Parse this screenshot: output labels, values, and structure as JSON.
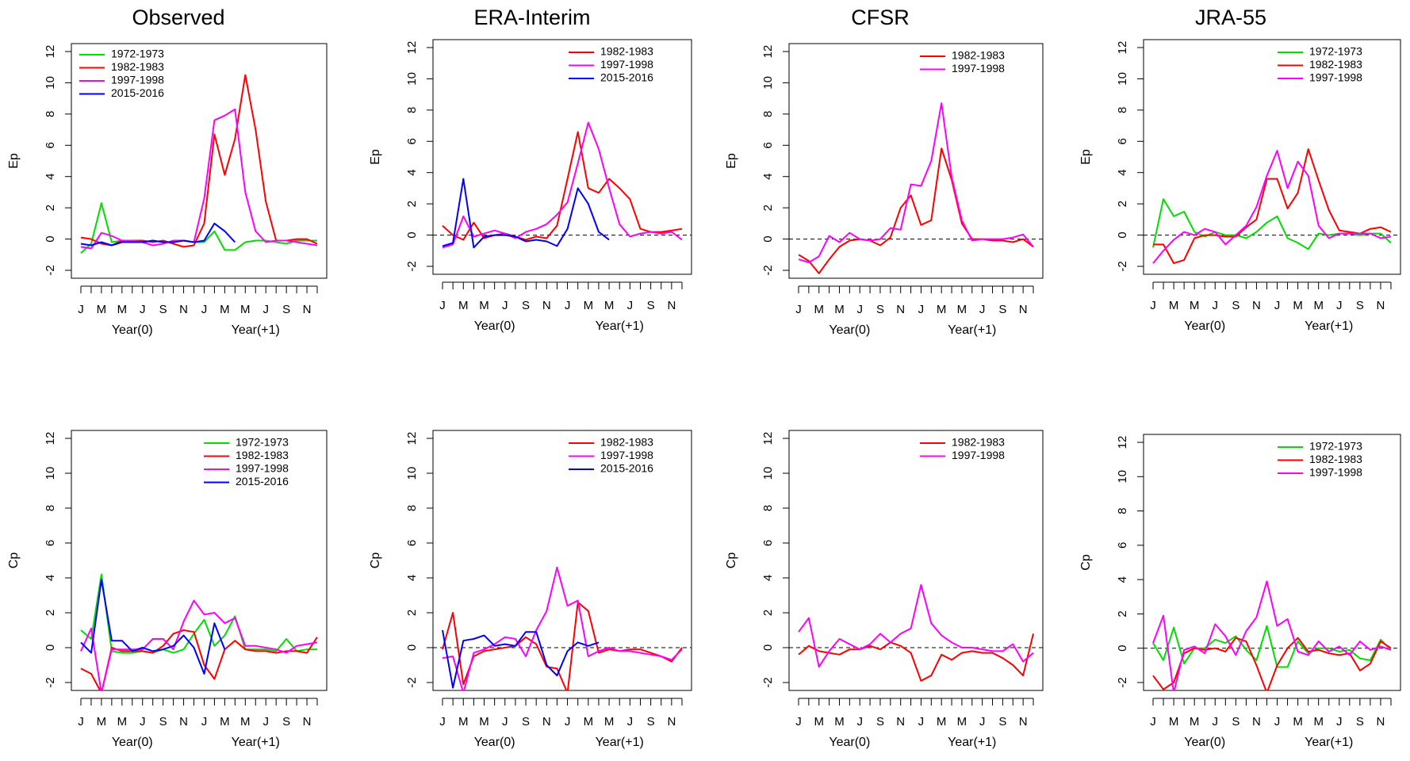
{
  "figure": {
    "column_titles": [
      "Observed",
      "ERA-Interim",
      "CFSR",
      "JRA-55"
    ]
  },
  "chart_data": [
    {
      "type": "line",
      "title": "Observed",
      "ylabel": "Ep",
      "xlabel": [
        "Year(0)",
        "Year(+1)"
      ],
      "ylim": [
        -2,
        12
      ],
      "yticks": [
        -2,
        0,
        2,
        4,
        6,
        8,
        10,
        12
      ],
      "xticklabels": [
        "J",
        "M",
        "M",
        "J",
        "S",
        "N",
        "J",
        "M",
        "M",
        "J",
        "S",
        "N"
      ],
      "n_months": 24,
      "zero_line": false,
      "legend_position": "top-left",
      "series": [
        {
          "name": "1972-1973",
          "color": "#00dd00",
          "values": [
            -0.9,
            -0.3,
            2.3,
            -0.2,
            -0.1,
            -0.1,
            -0.2,
            -0.1,
            -0.2,
            -0.2,
            -0.1,
            -0.2,
            -0.2,
            0.5,
            -0.7,
            -0.7,
            -0.2,
            -0.1,
            -0.1,
            -0.2,
            -0.3,
            -0.1,
            -0.1,
            -0.1
          ]
        },
        {
          "name": "1982-1983",
          "color": "#ff0000",
          "values": [
            0.1,
            0.0,
            -0.3,
            -0.4,
            -0.1,
            -0.1,
            -0.1,
            -0.2,
            -0.1,
            -0.3,
            -0.5,
            -0.4,
            1.0,
            6.7,
            4.1,
            6.4,
            10.5,
            7.0,
            2.4,
            -0.1,
            -0.1,
            0.0,
            0.0,
            -0.3
          ]
        },
        {
          "name": "1997-1998",
          "color": "#ff00ff",
          "values": [
            -0.5,
            -0.6,
            0.4,
            0.2,
            -0.1,
            -0.1,
            -0.2,
            -0.4,
            -0.3,
            -0.1,
            -0.1,
            -0.2,
            2.6,
            7.6,
            7.9,
            8.3,
            3.0,
            0.5,
            -0.2,
            -0.1,
            -0.1,
            -0.2,
            -0.3,
            -0.4
          ]
        },
        {
          "name": "2015-2016",
          "color": "#0000ff",
          "values": [
            -0.3,
            -0.4,
            -0.2,
            -0.4,
            -0.2,
            -0.2,
            -0.2,
            -0.1,
            -0.2,
            -0.2,
            -0.1,
            -0.2,
            -0.1,
            1.0,
            0.5,
            -0.2
          ]
        }
      ]
    },
    {
      "type": "line",
      "title": "ERA-Interim",
      "ylabel": "Ep",
      "xlabel": [
        "Year(0)",
        "Year(+1)"
      ],
      "ylim": [
        -2,
        12
      ],
      "yticks": [
        -2,
        0,
        2,
        4,
        6,
        8,
        10,
        12
      ],
      "xticklabels": [
        "J",
        "M",
        "M",
        "J",
        "S",
        "N",
        "J",
        "M",
        "M",
        "J",
        "S",
        "N"
      ],
      "n_months": 24,
      "zero_line": true,
      "legend_position": "top-right",
      "series": [
        {
          "name": "1982-1983",
          "color": "#ff0000",
          "values": [
            0.6,
            0.0,
            -0.3,
            0.8,
            -0.2,
            0.0,
            0.1,
            -0.1,
            -0.3,
            -0.1,
            -0.2,
            0.6,
            3.6,
            6.6,
            3.0,
            2.7,
            3.6,
            3.0,
            2.3,
            0.4,
            0.2,
            0.2,
            0.3,
            0.4
          ]
        },
        {
          "name": "1997-1998",
          "color": "#ff00ff",
          "values": [
            -0.8,
            -0.6,
            1.2,
            -0.1,
            0.1,
            0.3,
            0.1,
            -0.2,
            0.2,
            0.4,
            0.7,
            1.3,
            2.1,
            4.6,
            7.2,
            5.5,
            3.0,
            0.7,
            -0.1,
            0.1,
            0.2,
            0.1,
            0.2,
            -0.3
          ]
        },
        {
          "name": "2015-2016",
          "color": "#0000ff",
          "values": [
            -0.7,
            -0.5,
            3.6,
            -0.8,
            -0.1,
            0.0,
            0.0,
            -0.1,
            -0.4,
            -0.3,
            -0.4,
            -0.7,
            0.4,
            3.0,
            2.0,
            0.2,
            -0.3
          ]
        }
      ]
    },
    {
      "type": "line",
      "title": "CFSR",
      "ylabel": "Ep",
      "xlabel": [
        "Year(0)",
        "Year(+1)"
      ],
      "ylim": [
        -2,
        12
      ],
      "yticks": [
        -2,
        0,
        2,
        4,
        6,
        8,
        10,
        12
      ],
      "xticklabels": [
        "J",
        "M",
        "M",
        "J",
        "S",
        "N",
        "J",
        "M",
        "M",
        "J",
        "S",
        "N"
      ],
      "n_months": 24,
      "zero_line": true,
      "legend_position": "top-right",
      "series": [
        {
          "name": "1982-1983",
          "color": "#ff0000",
          "values": [
            -1.0,
            -1.4,
            -2.2,
            -1.3,
            -0.5,
            -0.1,
            0.0,
            -0.1,
            -0.4,
            0.1,
            2.0,
            2.8,
            0.9,
            1.2,
            5.8,
            3.8,
            1.0,
            0.0,
            0.0,
            -0.1,
            -0.1,
            -0.2,
            0.0,
            -0.5
          ]
        },
        {
          "name": "1997-1998",
          "color": "#ff00ff",
          "values": [
            -1.3,
            -1.5,
            -1.1,
            0.2,
            -0.2,
            0.4,
            0.0,
            -0.1,
            0.0,
            0.7,
            0.6,
            3.5,
            3.4,
            5.0,
            8.7,
            4.0,
            1.2,
            -0.1,
            0.0,
            0.0,
            0.0,
            0.1,
            0.3,
            -0.5
          ]
        }
      ]
    },
    {
      "type": "line",
      "title": "JRA-55",
      "ylabel": "Ep",
      "xlabel": [
        "Year(0)",
        "Year(+1)"
      ],
      "ylim": [
        -2,
        12
      ],
      "yticks": [
        -2,
        0,
        2,
        4,
        6,
        8,
        10,
        12
      ],
      "xticklabels": [
        "J",
        "M",
        "M",
        "J",
        "S",
        "N",
        "J",
        "M",
        "M",
        "J",
        "S",
        "N"
      ],
      "n_months": 24,
      "zero_line": true,
      "legend_position": "top-right",
      "series": [
        {
          "name": "1972-1973",
          "color": "#00dd00",
          "values": [
            -0.8,
            2.3,
            1.2,
            1.5,
            0.2,
            -0.1,
            0.2,
            0.0,
            0.0,
            -0.2,
            0.2,
            0.8,
            1.2,
            -0.2,
            -0.5,
            -0.9,
            0.1,
            0.0,
            0.1,
            0.1,
            0.0,
            0.1,
            0.1,
            -0.5
          ]
        },
        {
          "name": "1982-1983",
          "color": "#ff0000",
          "values": [
            -0.6,
            -0.6,
            -1.8,
            -1.6,
            -0.2,
            0.0,
            0.0,
            -0.1,
            -0.1,
            0.5,
            1.0,
            3.6,
            3.6,
            1.7,
            2.7,
            5.5,
            3.5,
            1.6,
            0.3,
            0.2,
            0.1,
            0.4,
            0.5,
            0.2
          ]
        },
        {
          "name": "1997-1998",
          "color": "#ff00ff",
          "values": [
            -1.8,
            -1.0,
            -0.3,
            0.2,
            0.0,
            0.4,
            0.2,
            -0.6,
            0.0,
            0.6,
            1.8,
            3.8,
            5.4,
            3.0,
            4.7,
            3.8,
            0.6,
            -0.2,
            0.1,
            0.1,
            0.1,
            0.1,
            -0.2,
            -0.1
          ]
        }
      ]
    },
    {
      "type": "line",
      "title": "",
      "ylabel": "Cp",
      "xlabel": [
        "Year(0)",
        "Year(+1)"
      ],
      "ylim": [
        -2,
        12
      ],
      "yticks": [
        -2,
        0,
        2,
        4,
        6,
        8,
        10,
        12
      ],
      "xticklabels": [
        "J",
        "M",
        "M",
        "J",
        "S",
        "N",
        "J",
        "M",
        "M",
        "J",
        "S",
        "N"
      ],
      "n_months": 24,
      "zero_line": false,
      "legend_position": "top-right",
      "series": [
        {
          "name": "1972-1973",
          "color": "#00dd00",
          "values": [
            1.0,
            0.5,
            4.2,
            -0.2,
            -0.3,
            -0.3,
            -0.2,
            -0.3,
            -0.1,
            -0.3,
            -0.1,
            0.8,
            1.6,
            0.1,
            0.7,
            1.8,
            -0.1,
            -0.1,
            -0.1,
            -0.2,
            0.5,
            -0.2,
            -0.1,
            -0.1
          ]
        },
        {
          "name": "1982-1983",
          "color": "#ff0000",
          "values": [
            -1.2,
            -1.5,
            -2.6,
            0.0,
            -0.2,
            -0.2,
            -0.2,
            -0.3,
            0.1,
            0.8,
            1.0,
            0.9,
            -1.0,
            -1.8,
            -0.1,
            0.4,
            -0.1,
            -0.2,
            -0.2,
            -0.3,
            -0.2,
            -0.2,
            -0.3,
            0.6
          ]
        },
        {
          "name": "1997-1998",
          "color": "#ff00ff",
          "values": [
            -0.2,
            1.1,
            -2.6,
            -0.1,
            -0.1,
            -0.1,
            -0.1,
            0.5,
            0.5,
            -0.1,
            1.5,
            2.7,
            1.9,
            2.0,
            1.4,
            1.7,
            0.1,
            0.1,
            0.0,
            -0.1,
            -0.3,
            0.1,
            0.2,
            0.3
          ]
        },
        {
          "name": "2015-2016",
          "color": "#0000ff",
          "values": [
            0.3,
            -0.3,
            3.9,
            0.4,
            0.4,
            -0.2,
            0.0,
            -0.2,
            -0.1,
            0.1,
            0.7,
            0.0,
            -1.5,
            1.4,
            -0.1
          ]
        }
      ]
    },
    {
      "type": "line",
      "title": "",
      "ylabel": "Cp",
      "xlabel": [
        "Year(0)",
        "Year(+1)"
      ],
      "ylim": [
        -2,
        12
      ],
      "yticks": [
        -2,
        0,
        2,
        4,
        6,
        8,
        10,
        12
      ],
      "xticklabels": [
        "J",
        "M",
        "M",
        "J",
        "S",
        "N",
        "J",
        "M",
        "M",
        "J",
        "S",
        "N"
      ],
      "n_months": 24,
      "zero_line": true,
      "legend_position": "top-right",
      "series": [
        {
          "name": "1982-1983",
          "color": "#ff0000",
          "values": [
            -0.1,
            2.0,
            -2.1,
            -0.5,
            -0.2,
            -0.1,
            0.0,
            0.1,
            0.6,
            0.2,
            -1.1,
            -1.2,
            -2.6,
            2.6,
            2.1,
            -0.3,
            -0.1,
            -0.2,
            -0.1,
            -0.1,
            -0.3,
            -0.5,
            -0.8,
            0.0
          ]
        },
        {
          "name": "1997-1998",
          "color": "#ff00ff",
          "values": [
            -0.6,
            -0.5,
            -2.6,
            -0.3,
            -0.1,
            0.2,
            0.6,
            0.5,
            -0.5,
            1.0,
            2.1,
            4.6,
            2.4,
            2.7,
            -0.5,
            -0.2,
            0.0,
            -0.2,
            -0.2,
            -0.3,
            -0.4,
            -0.5,
            -0.7,
            -0.1
          ]
        },
        {
          "name": "2015-2016",
          "color": "#0000ff",
          "values": [
            1.0,
            -2.3,
            0.4,
            0.5,
            0.7,
            0.1,
            0.2,
            0.1,
            0.9,
            0.9,
            -1.0,
            -1.6,
            -0.2,
            0.3,
            0.1,
            0.3
          ]
        }
      ]
    },
    {
      "type": "line",
      "title": "",
      "ylabel": "Cp",
      "xlabel": [
        "Year(0)",
        "Year(+1)"
      ],
      "ylim": [
        -2,
        12
      ],
      "yticks": [
        -2,
        0,
        2,
        4,
        6,
        8,
        10,
        12
      ],
      "xticklabels": [
        "J",
        "M",
        "M",
        "J",
        "S",
        "N",
        "J",
        "M",
        "M",
        "J",
        "S",
        "N"
      ],
      "n_months": 24,
      "zero_line": true,
      "legend_position": "top-right",
      "series": [
        {
          "name": "1982-1983",
          "color": "#ff0000",
          "values": [
            -0.4,
            0.1,
            -0.2,
            -0.3,
            -0.4,
            -0.1,
            -0.1,
            0.1,
            -0.1,
            0.3,
            0.1,
            -0.3,
            -1.9,
            -1.6,
            -0.4,
            -0.7,
            -0.3,
            -0.2,
            -0.3,
            -0.3,
            -0.6,
            -1.0,
            -1.6,
            0.8
          ]
        },
        {
          "name": "1997-1998",
          "color": "#ff00ff",
          "values": [
            0.9,
            1.7,
            -1.1,
            -0.2,
            0.5,
            0.2,
            -0.1,
            0.2,
            0.8,
            0.3,
            0.8,
            1.1,
            3.6,
            1.4,
            0.7,
            0.3,
            0.0,
            0.0,
            -0.1,
            -0.2,
            -0.2,
            0.2,
            -0.8,
            -0.3
          ]
        }
      ]
    },
    {
      "type": "line",
      "title": "",
      "ylabel": "Cp",
      "xlabel": [
        "Year(0)",
        "Year(+1)"
      ],
      "ylim": [
        -2,
        12
      ],
      "yticks": [
        -2,
        0,
        2,
        4,
        6,
        8,
        10,
        12
      ],
      "xticklabels": [
        "J",
        "M",
        "M",
        "J",
        "S",
        "N",
        "J",
        "M",
        "M",
        "J",
        "S",
        "N"
      ],
      "n_months": 24,
      "zero_line": true,
      "legend_position": "top-right",
      "series": [
        {
          "name": "1972-1973",
          "color": "#00dd00",
          "values": [
            0.3,
            -0.7,
            1.2,
            -0.9,
            0.0,
            0.0,
            0.5,
            0.3,
            0.7,
            -0.1,
            -0.7,
            1.3,
            -1.1,
            -1.1,
            0.4,
            -0.3,
            0.0,
            0.0,
            -0.2,
            -0.1,
            -0.6,
            -0.7,
            0.5,
            -0.1
          ]
        },
        {
          "name": "1982-1983",
          "color": "#ff0000",
          "values": [
            -1.6,
            -2.4,
            -2.0,
            -0.3,
            0.0,
            -0.1,
            0.0,
            -0.2,
            0.6,
            0.4,
            -1.0,
            -2.6,
            -1.0,
            0.0,
            0.6,
            -0.2,
            -0.1,
            -0.3,
            -0.4,
            -0.3,
            -1.3,
            -0.9,
            0.4,
            0.0
          ]
        },
        {
          "name": "1997-1998",
          "color": "#ff00ff",
          "values": [
            0.3,
            1.9,
            -2.6,
            -0.1,
            0.1,
            -0.3,
            1.4,
            0.7,
            -0.4,
            1.0,
            1.8,
            3.9,
            1.3,
            1.7,
            -0.2,
            -0.4,
            0.4,
            -0.2,
            0.1,
            -0.4,
            0.4,
            -0.1,
            0.1,
            -0.1
          ]
        }
      ]
    }
  ]
}
